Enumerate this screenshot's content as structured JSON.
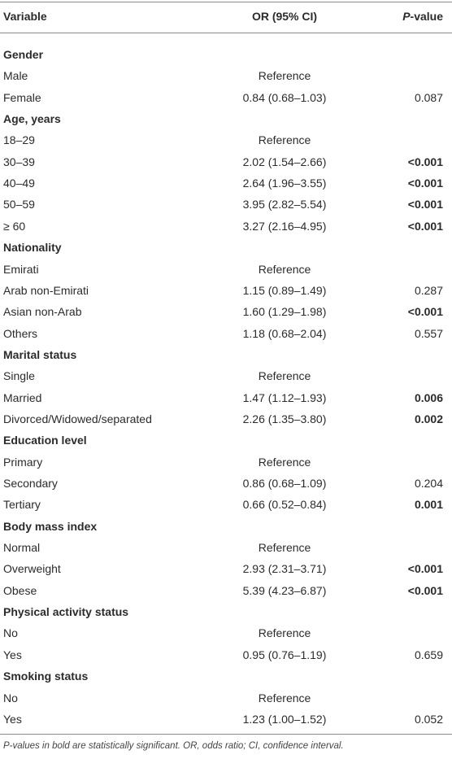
{
  "table": {
    "header": {
      "variable": "Variable",
      "or": "OR (95% CI)",
      "p_italic": "P",
      "p_rest": "-value"
    },
    "sections": [
      {
        "title": "Gender",
        "rows": [
          {
            "variable": "Male",
            "or": "Reference"
          },
          {
            "variable": "Female",
            "or": "0.84 (0.68–1.03)",
            "p": "0.087",
            "p_bold": false
          }
        ]
      },
      {
        "title": "Age, years",
        "rows": [
          {
            "variable": "18–29",
            "or": "Reference"
          },
          {
            "variable": "30–39",
            "or": "2.02 (1.54–2.66)",
            "p": "<0.001",
            "p_bold": true
          },
          {
            "variable": "40–49",
            "or": "2.64 (1.96–3.55)",
            "p": "<0.001",
            "p_bold": true
          },
          {
            "variable": "50–59",
            "or": "3.95 (2.82–5.54)",
            "p": "<0.001",
            "p_bold": true
          },
          {
            "variable": "≥ 60",
            "or": "3.27 (2.16–4.95)",
            "p": "<0.001",
            "p_bold": true
          }
        ]
      },
      {
        "title": "Nationality",
        "rows": [
          {
            "variable": "Emirati",
            "or": "Reference"
          },
          {
            "variable": "Arab non-Emirati",
            "or": "1.15 (0.89–1.49)",
            "p": "0.287",
            "p_bold": false
          },
          {
            "variable": "Asian non-Arab",
            "or": "1.60 (1.29–1.98)",
            "p": "<0.001",
            "p_bold": true
          },
          {
            "variable": "Others",
            "or": "1.18 (0.68–2.04)",
            "p": "0.557",
            "p_bold": false
          }
        ]
      },
      {
        "title": "Marital status",
        "rows": [
          {
            "variable": "Single",
            "or": "Reference"
          },
          {
            "variable": "Married",
            "or": "1.47 (1.12–1.93)",
            "p": "0.006",
            "p_bold": true
          },
          {
            "variable": "Divorced/Widowed/separated",
            "or": "2.26 (1.35–3.80)",
            "p": "0.002",
            "p_bold": true
          }
        ]
      },
      {
        "title": "Education level",
        "rows": [
          {
            "variable": "Primary",
            "or": "Reference"
          },
          {
            "variable": "Secondary",
            "or": "0.86 (0.68–1.09)",
            "p": "0.204",
            "p_bold": false
          },
          {
            "variable": "Tertiary",
            "or": "0.66 (0.52–0.84)",
            "p": "0.001",
            "p_bold": true
          }
        ]
      },
      {
        "title": "Body mass index",
        "rows": [
          {
            "variable": "Normal",
            "or": "Reference"
          },
          {
            "variable": "Overweight",
            "or": "2.93 (2.31–3.71)",
            "p": "<0.001",
            "p_bold": true
          },
          {
            "variable": "Obese",
            "or": "5.39 (4.23–6.87)",
            "p": "<0.001",
            "p_bold": true
          }
        ]
      },
      {
        "title": "Physical activity status",
        "rows": [
          {
            "variable": "No",
            "or": "Reference"
          },
          {
            "variable": "Yes",
            "or": "0.95 (0.76–1.19)",
            "p": "0.659",
            "p_bold": false
          }
        ]
      },
      {
        "title": "Smoking status",
        "rows": [
          {
            "variable": "No",
            "or": "Reference"
          },
          {
            "variable": "Yes",
            "or": "1.23 (1.00–1.52)",
            "p": "0.052",
            "p_bold": false
          }
        ]
      }
    ],
    "footnote": "P-values in bold are statistically significant. OR, odds ratio; CI, confidence interval."
  }
}
